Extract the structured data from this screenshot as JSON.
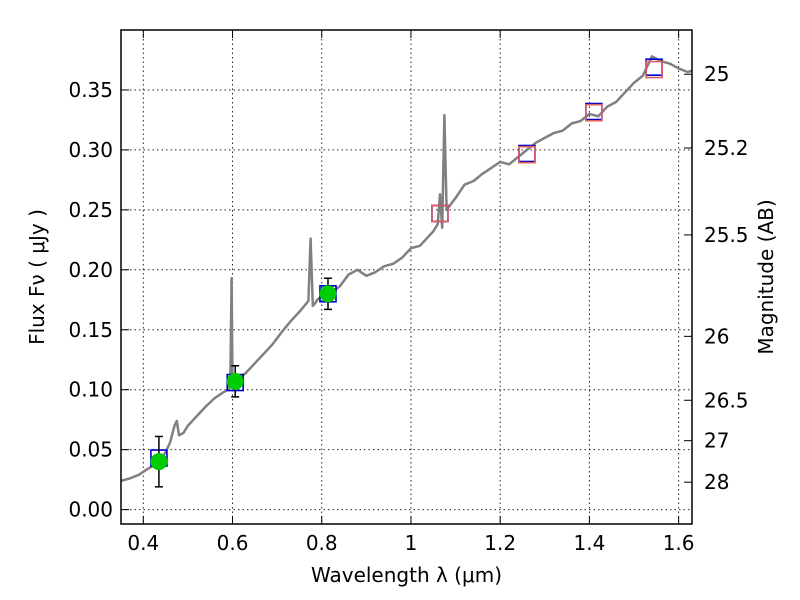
{
  "chart_data": {
    "type": "scatter",
    "xlabel": "Wavelength  λ (μm)",
    "ylabel": "Flux  Fν  ( μJy )",
    "ylabel_right": "Magnitude (AB)",
    "xlim": [
      0.35,
      1.63
    ],
    "ylim": [
      -0.012,
      0.4
    ],
    "grid": true,
    "x_ticks": [
      {
        "value": 0.4,
        "label": "0.4"
      },
      {
        "value": 0.6,
        "label": "0.6"
      },
      {
        "value": 0.8,
        "label": "0.8"
      },
      {
        "value": 1.0,
        "label": "1"
      },
      {
        "value": 1.2,
        "label": "1.2"
      },
      {
        "value": 1.4,
        "label": "1.4"
      },
      {
        "value": 1.6,
        "label": "1.6"
      }
    ],
    "y_ticks": [
      {
        "value": 0.0,
        "label": "0.00"
      },
      {
        "value": 0.05,
        "label": "0.05"
      },
      {
        "value": 0.1,
        "label": "0.10"
      },
      {
        "value": 0.15,
        "label": "0.15"
      },
      {
        "value": 0.2,
        "label": "0.20"
      },
      {
        "value": 0.25,
        "label": "0.25"
      },
      {
        "value": 0.3,
        "label": "0.30"
      },
      {
        "value": 0.35,
        "label": "0.35"
      }
    ],
    "y2_ticks": [
      {
        "flux": 0.3631,
        "label": "25"
      },
      {
        "flux": 0.3016,
        "label": "25.2"
      },
      {
        "flux": 0.2291,
        "label": "25.5"
      },
      {
        "flux": 0.1445,
        "label": "26"
      },
      {
        "flux": 0.0912,
        "label": "26.5"
      },
      {
        "flux": 0.0575,
        "label": "27"
      },
      {
        "flux": 0.0229,
        "label": "28"
      }
    ],
    "series": [
      {
        "kind": "line",
        "color": "#808080",
        "x": [
          0.35,
          0.37,
          0.39,
          0.41,
          0.42,
          0.43,
          0.44,
          0.45,
          0.46,
          0.47,
          0.475,
          0.48,
          0.49,
          0.5,
          0.52,
          0.54,
          0.56,
          0.58,
          0.59,
          0.595,
          0.598,
          0.6,
          0.605,
          0.61,
          0.63,
          0.65,
          0.67,
          0.69,
          0.71,
          0.73,
          0.75,
          0.77,
          0.775,
          0.78,
          0.785,
          0.79,
          0.8,
          0.82,
          0.84,
          0.86,
          0.88,
          0.9,
          0.92,
          0.94,
          0.96,
          0.98,
          1.0,
          1.02,
          1.04,
          1.05,
          1.06,
          1.065,
          1.07,
          1.075,
          1.08,
          1.1,
          1.12,
          1.14,
          1.16,
          1.18,
          1.2,
          1.22,
          1.24,
          1.26,
          1.28,
          1.3,
          1.32,
          1.34,
          1.36,
          1.38,
          1.4,
          1.42,
          1.44,
          1.46,
          1.48,
          1.5,
          1.52,
          1.54,
          1.56,
          1.58,
          1.6,
          1.62,
          1.63
        ],
        "y": [
          0.024,
          0.026,
          0.029,
          0.034,
          0.036,
          0.038,
          0.042,
          0.048,
          0.056,
          0.07,
          0.074,
          0.062,
          0.064,
          0.07,
          0.078,
          0.086,
          0.093,
          0.098,
          0.1,
          0.104,
          0.193,
          0.105,
          0.107,
          0.108,
          0.114,
          0.122,
          0.13,
          0.138,
          0.148,
          0.157,
          0.165,
          0.174,
          0.226,
          0.17,
          0.172,
          0.175,
          0.178,
          0.181,
          0.186,
          0.196,
          0.2,
          0.195,
          0.198,
          0.203,
          0.205,
          0.21,
          0.218,
          0.22,
          0.228,
          0.232,
          0.238,
          0.263,
          0.235,
          0.329,
          0.25,
          0.26,
          0.271,
          0.274,
          0.28,
          0.285,
          0.29,
          0.288,
          0.294,
          0.3,
          0.306,
          0.31,
          0.314,
          0.316,
          0.322,
          0.324,
          0.33,
          0.328,
          0.336,
          0.34,
          0.348,
          0.356,
          0.362,
          0.378,
          0.374,
          0.372,
          0.368,
          0.365,
          0.366
        ]
      },
      {
        "kind": "open-square",
        "color": "#0000cc",
        "x": [
          0.435,
          0.606,
          0.814,
          1.065,
          1.26,
          1.41,
          1.545
        ],
        "y": [
          0.043,
          0.106,
          0.18,
          0.247,
          0.297,
          0.332,
          0.369
        ]
      },
      {
        "kind": "open-square",
        "color": "#e06060",
        "x": [
          1.065,
          1.26,
          1.41,
          1.545
        ],
        "y": [
          0.247,
          0.296,
          0.331,
          0.367
        ]
      },
      {
        "kind": "filled-circle",
        "color": "#00cc00",
        "x": [
          0.435,
          0.606,
          0.814
        ],
        "y": [
          0.04,
          0.107,
          0.18
        ],
        "yerr": [
          0.021,
          0.013,
          0.013
        ]
      }
    ]
  }
}
